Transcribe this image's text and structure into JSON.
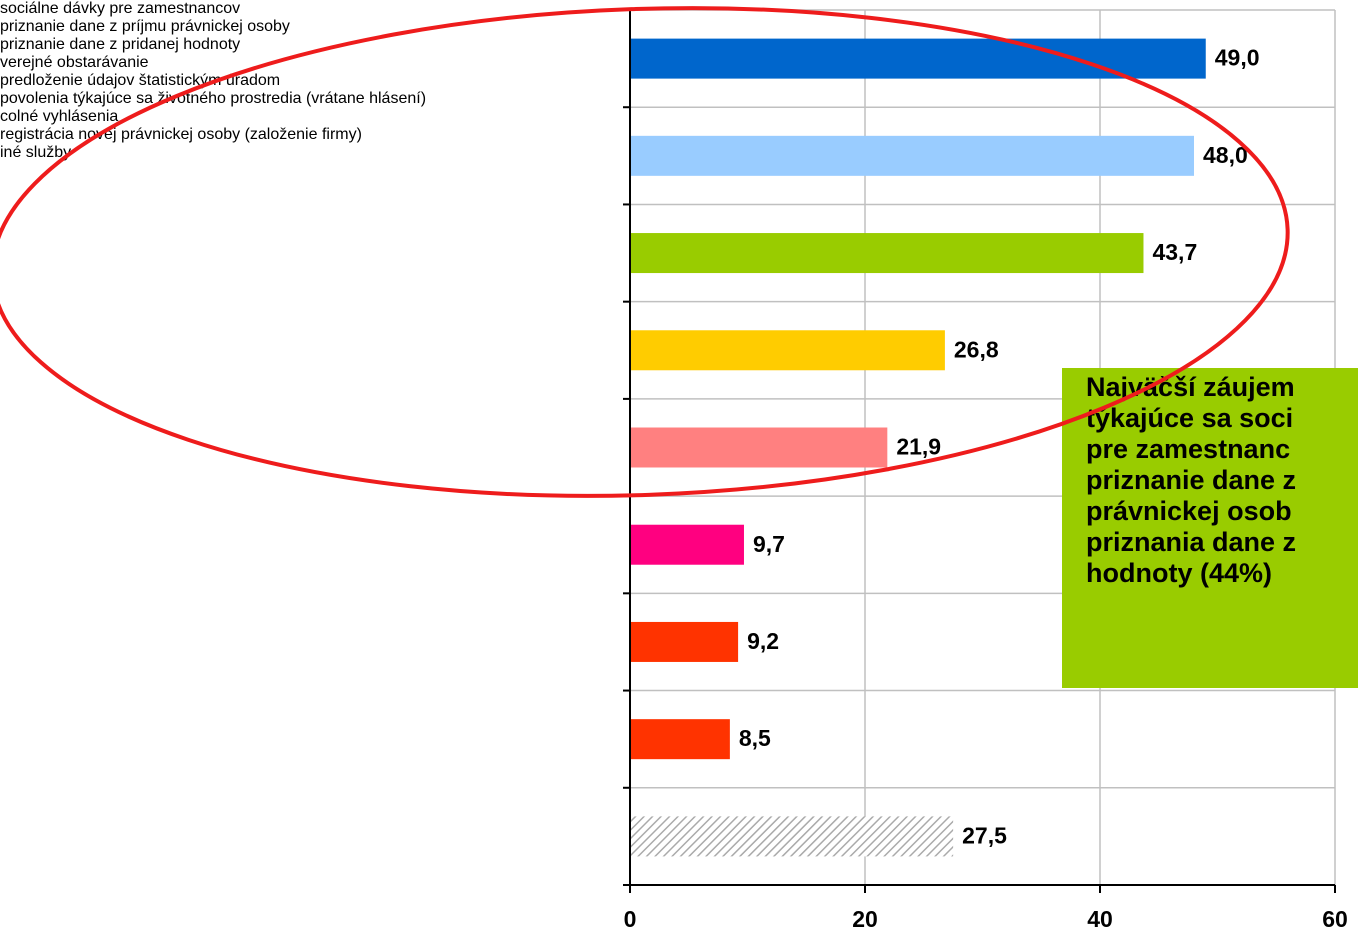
{
  "chart_data": {
    "type": "barh",
    "categories": [
      "sociálne dávky pre zamestnancov",
      "priznanie dane z príjmu právnickej osoby",
      "priznanie dane z pridanej hodnoty",
      "verejné obstarávanie",
      "predloženie údajov štatistickým úradom",
      "povolenia týkajúce sa životného prostredia (vrátane hlásení)",
      "colné vyhlásenia",
      "registrácia novej právnickej osoby (založenie firmy)",
      "iné služby"
    ],
    "values": [
      49.0,
      48.0,
      43.7,
      26.8,
      21.9,
      9.7,
      9.2,
      8.5,
      27.5
    ],
    "value_labels": [
      "49,0",
      "48,0",
      "43,7",
      "26,8",
      "21,9",
      "9,7",
      "9,2",
      "8,5",
      "27,5"
    ],
    "colors": [
      "#0066cc",
      "#99ccff",
      "#99cc00",
      "#ffcc00",
      "#ff8080",
      "#ff0080",
      "#ff3300",
      "#ff3300",
      "#c0c0c0"
    ],
    "styles": [
      "solid",
      "solid",
      "solid",
      "solid",
      "solid",
      "solid",
      "solid",
      "solid",
      "hatched"
    ],
    "xlim": [
      0,
      60
    ],
    "xticks": [
      0,
      20,
      40,
      60
    ],
    "grid": true,
    "annotation": [
      "Najväčší záujem",
      "týkajúce sa soci",
      "pre zamestnanc",
      "priznanie dane z",
      "právnickej osob",
      "priznania dane z",
      "hodnoty (44%)"
    ]
  }
}
